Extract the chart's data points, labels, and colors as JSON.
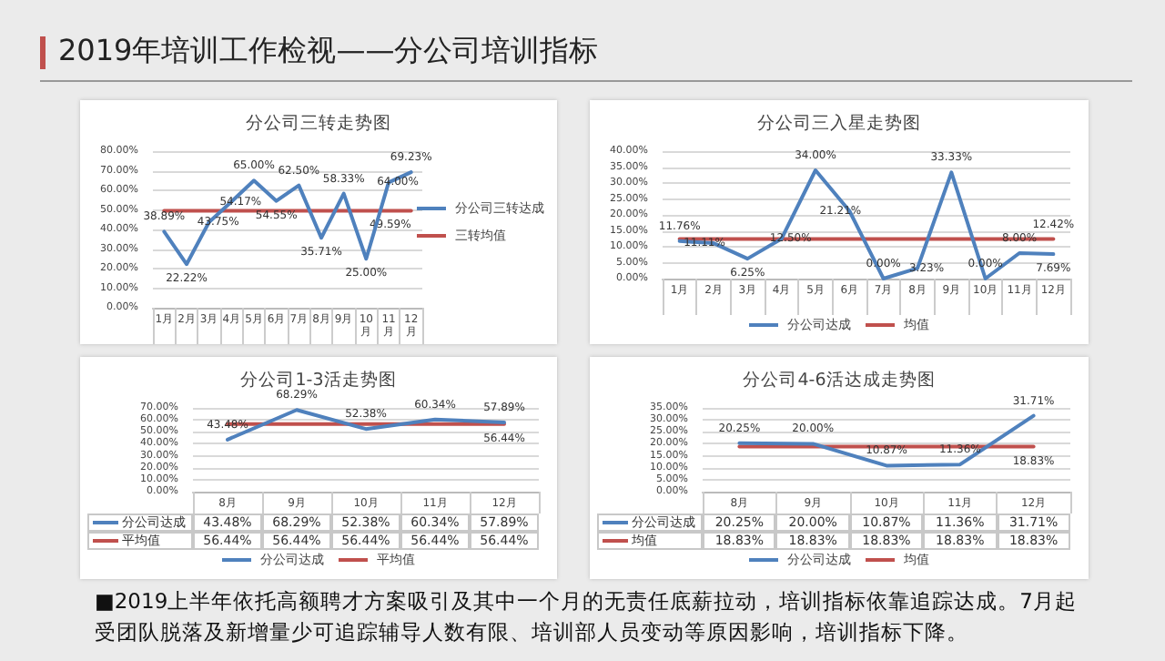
{
  "chart_data": [
    {
      "type": "other",
      "title": "2019年培训工作检视——分公司培训指标",
      "annotations": [
        "■2019上半年依托高额聘才方案吸引及其中一个月的无责任底薪拉动，培训指标依靠追踪达成。7月起受团队脱落及新增量少可追踪辅导人数有限、培训部人员变动等原因影响，培训指标下降。"
      ]
    },
    {
      "type": "line",
      "title": "分公司三转走势图",
      "categories": [
        "1月",
        "2月",
        "3月",
        "4月",
        "5月",
        "6月",
        "7月",
        "8月",
        "9月",
        "10月",
        "11月",
        "12月"
      ],
      "series": [
        {
          "name": "分公司三转达成",
          "color": "#4f81bd",
          "values": [
            38.89,
            22.22,
            43.75,
            54.17,
            65.0,
            54.55,
            62.5,
            35.71,
            58.33,
            25.0,
            64.0,
            69.23
          ],
          "value_labels": [
            "38.89%",
            "22.22%",
            "43.75%",
            "54.17%",
            "65.00%",
            "54.55%",
            "62.50%",
            "35.71%",
            "58.33%",
            "25.00%",
            "64.00%",
            "69.23%"
          ]
        },
        {
          "name": "三转均值",
          "color": "#c0504d",
          "values": [
            49.59,
            49.59,
            49.59,
            49.59,
            49.59,
            49.59,
            49.59,
            49.59,
            49.59,
            49.59,
            49.59,
            49.59
          ],
          "value_labels": [
            null,
            null,
            null,
            null,
            null,
            null,
            null,
            null,
            null,
            null,
            null,
            "49.59%"
          ]
        }
      ],
      "ylim": [
        0,
        80
      ],
      "yticks": [
        {
          "value": 0,
          "label": "0.00%"
        },
        {
          "value": 10,
          "label": "10.00%"
        },
        {
          "value": 20,
          "label": "20.00%"
        },
        {
          "value": 30,
          "label": "30.00%"
        },
        {
          "value": 40,
          "label": "40.00%"
        },
        {
          "value": 50,
          "label": "50.00%"
        },
        {
          "value": 60,
          "label": "60.00%"
        },
        {
          "value": 70,
          "label": "70.00%"
        },
        {
          "value": 80,
          "label": "80.00%"
        }
      ],
      "grid": "y",
      "legend": "right"
    },
    {
      "type": "line",
      "title": "分公司三入星走势图",
      "categories": [
        "1月",
        "2月",
        "3月",
        "4月",
        "5月",
        "6月",
        "7月",
        "8月",
        "9月",
        "10月",
        "11月",
        "12月"
      ],
      "series": [
        {
          "name": "分公司达成",
          "color": "#4f81bd",
          "values": [
            11.76,
            11.11,
            6.25,
            12.5,
            34.0,
            21.21,
            0.0,
            3.23,
            33.33,
            0.0,
            8.0,
            7.69
          ],
          "value_labels": [
            "11.76%",
            "11.11%",
            "6.25%",
            "12.50%",
            "34.00%",
            "21.21%",
            "0.00%",
            "3.23%",
            "33.33%",
            "0.00%",
            "8.00%",
            "7.69%"
          ]
        },
        {
          "name": "均值",
          "color": "#c0504d",
          "values": [
            12.42,
            12.42,
            12.42,
            12.42,
            12.42,
            12.42,
            12.42,
            12.42,
            12.42,
            12.42,
            12.42,
            12.42
          ],
          "value_labels": [
            null,
            null,
            null,
            null,
            null,
            null,
            null,
            null,
            null,
            null,
            null,
            "12.42%"
          ]
        }
      ],
      "ylim": [
        0,
        40
      ],
      "yticks": [
        {
          "value": 0,
          "label": "0.00%"
        },
        {
          "value": 5,
          "label": "5.00%"
        },
        {
          "value": 10,
          "label": "10.00%"
        },
        {
          "value": 15,
          "label": "15.00%"
        },
        {
          "value": 20,
          "label": "20.00%"
        },
        {
          "value": 25,
          "label": "25.00%"
        },
        {
          "value": 30,
          "label": "30.00%"
        },
        {
          "value": 35,
          "label": "35.00%"
        },
        {
          "value": 40,
          "label": "40.00%"
        }
      ],
      "grid": "y",
      "legend": "bottom"
    },
    {
      "type": "line",
      "title": "分公司1-3活走势图",
      "categories": [
        "8月",
        "9月",
        "10月",
        "11月",
        "12月"
      ],
      "series": [
        {
          "name": "分公司达成",
          "color": "#4f81bd",
          "values": [
            43.48,
            68.29,
            52.38,
            60.34,
            57.89
          ],
          "value_labels": [
            "43.48%",
            "68.29%",
            "52.38%",
            "60.34%",
            "57.89%"
          ]
        },
        {
          "name": "平均值",
          "color": "#c0504d",
          "values": [
            56.44,
            56.44,
            56.44,
            56.44,
            56.44
          ],
          "value_labels": [
            "56.44%",
            "56.44%",
            "56.44%",
            "56.44%",
            "56.44%"
          ]
        }
      ],
      "ylim": [
        0,
        70
      ],
      "yticks": [
        {
          "value": 0,
          "label": "0.00%"
        },
        {
          "value": 10,
          "label": "10.00%"
        },
        {
          "value": 20,
          "label": "20.00%"
        },
        {
          "value": 30,
          "label": "30.00%"
        },
        {
          "value": 40,
          "label": "40.00%"
        },
        {
          "value": 50,
          "label": "50.00%"
        },
        {
          "value": 60,
          "label": "60.00%"
        },
        {
          "value": 70,
          "label": "70.00%"
        }
      ],
      "grid": "y",
      "legend": "bottom"
    },
    {
      "type": "line",
      "title": "分公司4-6活达成走势图",
      "categories": [
        "8月",
        "9月",
        "10月",
        "11月",
        "12月"
      ],
      "series": [
        {
          "name": "分公司达成",
          "color": "#4f81bd",
          "values": [
            20.25,
            20.0,
            10.87,
            11.36,
            31.71
          ],
          "value_labels": [
            "20.25%",
            "20.00%",
            "10.87%",
            "11.36%",
            "31.71%"
          ]
        },
        {
          "name": "均值",
          "color": "#c0504d",
          "values": [
            18.83,
            18.83,
            18.83,
            18.83,
            18.83
          ],
          "value_labels": [
            "18.83%",
            "18.83%",
            "18.83%",
            "18.83%",
            "18.83%"
          ]
        }
      ],
      "ylim": [
        0,
        35
      ],
      "yticks": [
        {
          "value": 0,
          "label": "0.00%"
        },
        {
          "value": 5,
          "label": "5.00%"
        },
        {
          "value": 10,
          "label": "10.00%"
        },
        {
          "value": 15,
          "label": "15.00%"
        },
        {
          "value": 20,
          "label": "20.00%"
        },
        {
          "value": 25,
          "label": "25.00%"
        },
        {
          "value": 30,
          "label": "30.00%"
        },
        {
          "value": 35,
          "label": "35.00%"
        }
      ],
      "grid": "y",
      "legend": "bottom"
    }
  ]
}
